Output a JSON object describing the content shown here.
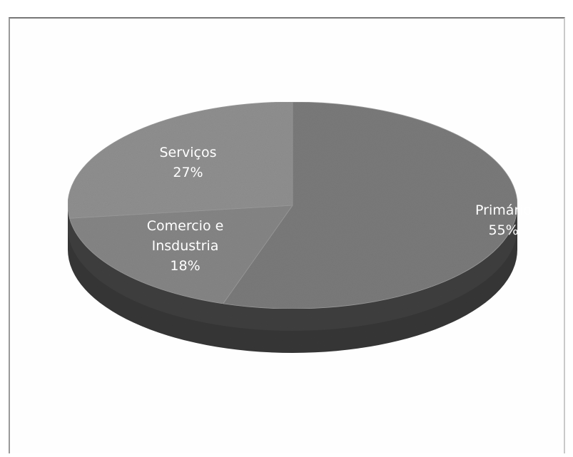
{
  "chart_data": {
    "type": "pie",
    "three_d": true,
    "title": "",
    "slices": [
      {
        "label_lines": [
          "Primário"
        ],
        "value": 55,
        "value_label": "55%",
        "color": "#7a7a7a"
      },
      {
        "label_lines": [
          "Comercio e",
          "Insdustria"
        ],
        "value": 18,
        "value_label": "18%",
        "color": "#858585"
      },
      {
        "label_lines": [
          "Serviços"
        ],
        "value": 27,
        "value_label": "27%",
        "color": "#8f8f8f"
      }
    ],
    "side_color": "#3f3f3f",
    "legend": "none"
  }
}
